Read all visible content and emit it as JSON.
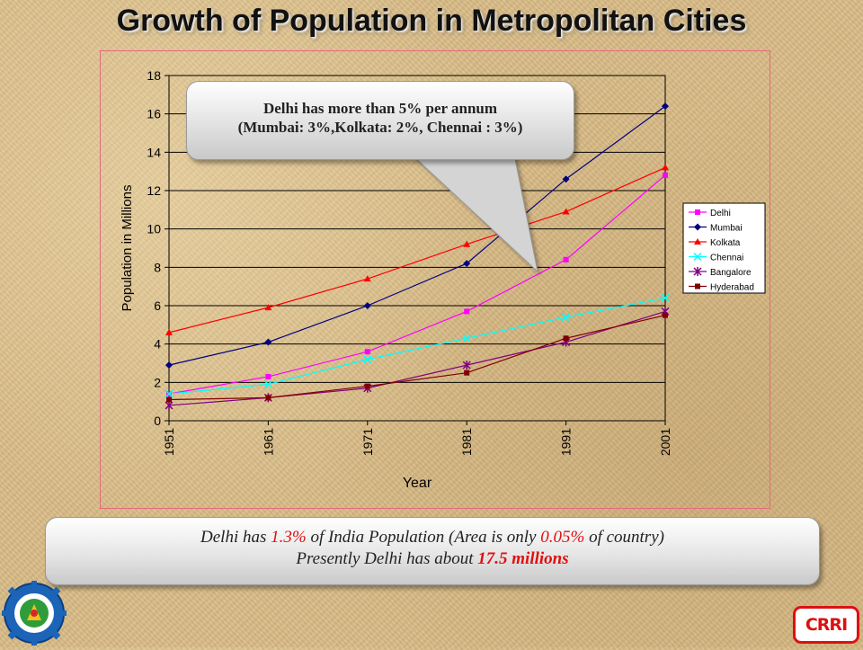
{
  "title": "Growth of Population in Metropolitan Cities",
  "chart_data": {
    "type": "line",
    "xlabel": "Year",
    "ylabel": "Population in Millions",
    "x": [
      "1951",
      "1961",
      "1971",
      "1981",
      "1991",
      "2001"
    ],
    "ylim": [
      0,
      18
    ],
    "yticks": [
      0,
      2,
      4,
      6,
      8,
      10,
      12,
      14,
      16,
      18
    ],
    "grid": true,
    "legend_position": "right",
    "series": [
      {
        "name": "Delhi",
        "color": "#ff00ff",
        "marker": "square",
        "values": [
          1.4,
          2.3,
          3.6,
          5.7,
          8.4,
          12.8
        ]
      },
      {
        "name": "Mumbai",
        "color": "#000080",
        "marker": "diamond",
        "values": [
          2.9,
          4.1,
          6.0,
          8.2,
          12.6,
          16.4
        ]
      },
      {
        "name": "Kolkata",
        "color": "#ff0000",
        "marker": "triangle",
        "values": [
          4.6,
          5.9,
          7.4,
          9.2,
          10.9,
          13.2
        ]
      },
      {
        "name": "Chennai",
        "color": "#00ffff",
        "marker": "x",
        "values": [
          1.4,
          1.9,
          3.2,
          4.3,
          5.4,
          6.4
        ]
      },
      {
        "name": "Bangalore",
        "color": "#800080",
        "marker": "star",
        "values": [
          0.8,
          1.2,
          1.7,
          2.9,
          4.1,
          5.7
        ]
      },
      {
        "name": "Hyderabad",
        "color": "#800000",
        "marker": "square",
        "values": [
          1.1,
          1.2,
          1.8,
          2.5,
          4.3,
          5.5
        ]
      }
    ]
  },
  "callout_top": {
    "line1": "Delhi has more than 5% per annum",
    "line2": "(Mumbai: 3%,Kolkata: 2%, Chennai : 3%)"
  },
  "callout_bottom": {
    "l1_a": "Delhi has ",
    "l1_b": "1.3%",
    "l1_c": " of India Population (Area is only ",
    "l1_d": "0.05%",
    "l1_e": " of country)",
    "l2_a": "Presently Delhi has about ",
    "l2_b": "17.5 millions"
  },
  "logos": {
    "left_icon": "csir-gear-emblem-icon",
    "right_text": "CRRI"
  }
}
